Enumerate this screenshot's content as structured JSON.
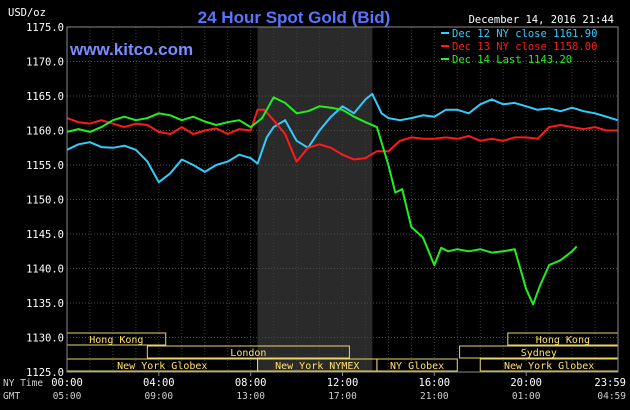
{
  "chart_data": {
    "type": "line",
    "title": "24 Hour Spot Gold (Bid)",
    "source": "www.kitco.com",
    "timestamp": "December 14, 2016 21:44",
    "ylabel": "USD/oz",
    "ylim": [
      1125,
      1175
    ],
    "yticks": [
      "1175.0",
      "1170.0",
      "1165.0",
      "1160.0",
      "1155.0",
      "1150.0",
      "1145.0",
      "1140.0",
      "1135.0",
      "1130.0",
      "1125.0"
    ],
    "ytick_values": [
      1175,
      1170,
      1165,
      1160,
      1155,
      1150,
      1145,
      1140,
      1135,
      1130,
      1125
    ],
    "xlim": [
      0,
      24
    ],
    "x_axis_rows": [
      {
        "label": "NY Time",
        "ticks": [
          "00:00",
          "04:00",
          "08:00",
          "12:00",
          "16:00",
          "20:00",
          "23:59"
        ]
      },
      {
        "label": "GMT",
        "ticks": [
          "05:00",
          "09:00",
          "13:00",
          "17:00",
          "21:00",
          "01:00",
          "04:59"
        ]
      }
    ],
    "xtick_hours": [
      0,
      4,
      8,
      12,
      16,
      20,
      23.98
    ],
    "shaded_region": [
      8.3,
      13.3
    ],
    "legend_position": "top-right",
    "colors": {
      "series_blue": "#33ccff",
      "series_red": "#ff1a1a",
      "series_green": "#22ee22",
      "title": "#5b73ff",
      "shade": "#2a2a2a",
      "band": "#ffe36a"
    },
    "series": [
      {
        "name": "Dec 12 NY close 1161.90",
        "color": "#33ccff",
        "x": [
          0,
          0.5,
          1,
          1.5,
          2,
          2.5,
          3,
          3.5,
          4,
          4.5,
          5,
          5.5,
          6,
          6.5,
          7,
          7.5,
          8,
          8.3,
          8.7,
          9,
          9.5,
          10,
          10.5,
          11,
          11.5,
          12,
          12.5,
          13,
          13.3,
          13.7,
          14,
          14.5,
          15,
          15.5,
          16,
          16.5,
          17,
          17.5,
          18,
          18.5,
          19,
          19.5,
          20,
          20.5,
          21,
          21.5,
          22,
          22.5,
          23,
          23.5,
          23.98
        ],
        "values": [
          1157.2,
          1158.0,
          1158.3,
          1157.6,
          1157.5,
          1157.8,
          1157.2,
          1155.5,
          1152.5,
          1153.8,
          1155.8,
          1155.0,
          1154.0,
          1155.0,
          1155.5,
          1156.5,
          1156.0,
          1155.2,
          1159.0,
          1160.5,
          1161.5,
          1158.5,
          1157.5,
          1160.0,
          1162.0,
          1163.5,
          1162.5,
          1164.5,
          1165.3,
          1162.5,
          1161.8,
          1161.5,
          1161.8,
          1162.2,
          1162.0,
          1163.0,
          1163.0,
          1162.5,
          1163.8,
          1164.5,
          1163.8,
          1164.0,
          1163.5,
          1163.0,
          1163.2,
          1162.8,
          1163.3,
          1162.8,
          1162.5,
          1162.0,
          1161.5
        ]
      },
      {
        "name": "Dec 13 NY close 1158.00",
        "color": "#ff1a1a",
        "x": [
          0,
          0.5,
          1,
          1.5,
          2,
          2.5,
          3,
          3.5,
          4,
          4.5,
          5,
          5.5,
          6,
          6.5,
          7,
          7.5,
          8,
          8.3,
          8.6,
          9,
          9.5,
          10,
          10.5,
          11,
          11.5,
          12,
          12.5,
          13,
          13.5,
          14,
          14.5,
          15,
          15.5,
          16,
          16.5,
          17,
          17.5,
          18,
          18.5,
          19,
          19.5,
          20,
          20.5,
          21,
          21.5,
          22,
          22.5,
          23,
          23.5,
          23.98
        ],
        "values": [
          1161.8,
          1161.2,
          1161.0,
          1161.5,
          1161.0,
          1160.5,
          1161.0,
          1160.8,
          1159.8,
          1159.5,
          1160.5,
          1159.5,
          1160.0,
          1160.3,
          1159.5,
          1160.2,
          1160.0,
          1163.0,
          1163.0,
          1161.5,
          1159.5,
          1155.5,
          1157.5,
          1158.0,
          1157.5,
          1156.5,
          1155.8,
          1156.0,
          1157.0,
          1157.0,
          1158.5,
          1159.0,
          1158.8,
          1158.8,
          1159.0,
          1158.8,
          1159.2,
          1158.5,
          1158.8,
          1158.5,
          1159.0,
          1159.0,
          1158.8,
          1160.5,
          1160.8,
          1160.5,
          1160.2,
          1160.5,
          1160.0,
          1160.0
        ]
      },
      {
        "name": "Dec 14 Last 1143.20",
        "color": "#22ee22",
        "x": [
          0,
          0.5,
          1,
          1.5,
          2,
          2.5,
          3,
          3.5,
          4,
          4.5,
          5,
          5.5,
          6,
          6.5,
          7,
          7.5,
          8,
          8.5,
          9,
          9.5,
          10,
          10.5,
          11,
          11.5,
          12,
          12.5,
          13,
          13.5,
          14,
          14.3,
          14.6,
          15,
          15.5,
          16,
          16.3,
          16.6,
          17,
          17.5,
          18,
          18.5,
          19,
          19.5,
          20,
          20.3,
          20.6,
          21,
          21.5,
          22,
          22.2
        ],
        "values": [
          1159.8,
          1160.2,
          1159.8,
          1160.5,
          1161.5,
          1162.0,
          1161.5,
          1161.8,
          1162.5,
          1162.2,
          1161.5,
          1162.0,
          1161.3,
          1160.8,
          1161.2,
          1161.5,
          1160.5,
          1161.8,
          1164.8,
          1164.0,
          1162.5,
          1162.8,
          1163.5,
          1163.3,
          1163.0,
          1162.0,
          1161.2,
          1160.5,
          1155.0,
          1151.0,
          1151.5,
          1146.0,
          1144.5,
          1140.5,
          1143.0,
          1142.5,
          1142.8,
          1142.5,
          1142.8,
          1142.3,
          1142.5,
          1142.8,
          1137.0,
          1134.8,
          1137.5,
          1140.5,
          1141.2,
          1142.5,
          1143.2
        ]
      }
    ],
    "sessions": [
      {
        "label": "Hong Kong",
        "start": 0,
        "end": 4.3,
        "row": 0
      },
      {
        "label": "Hong Kong",
        "start": 19.2,
        "end": 24,
        "row": 0
      },
      {
        "label": "London",
        "start": 3.5,
        "end": 12.3,
        "row": 1
      },
      {
        "label": "Sydney",
        "start": 17.1,
        "end": 24,
        "row": 1
      },
      {
        "label": "New York Globex",
        "start": 0,
        "end": 8.3,
        "row": 2
      },
      {
        "label": "New York NYMEX",
        "start": 8.3,
        "end": 13.5,
        "row": 2
      },
      {
        "label": "NY Globex",
        "start": 13.5,
        "end": 17.0,
        "row": 2
      },
      {
        "label": "New York Globex",
        "start": 18.0,
        "end": 24,
        "row": 2
      }
    ]
  }
}
